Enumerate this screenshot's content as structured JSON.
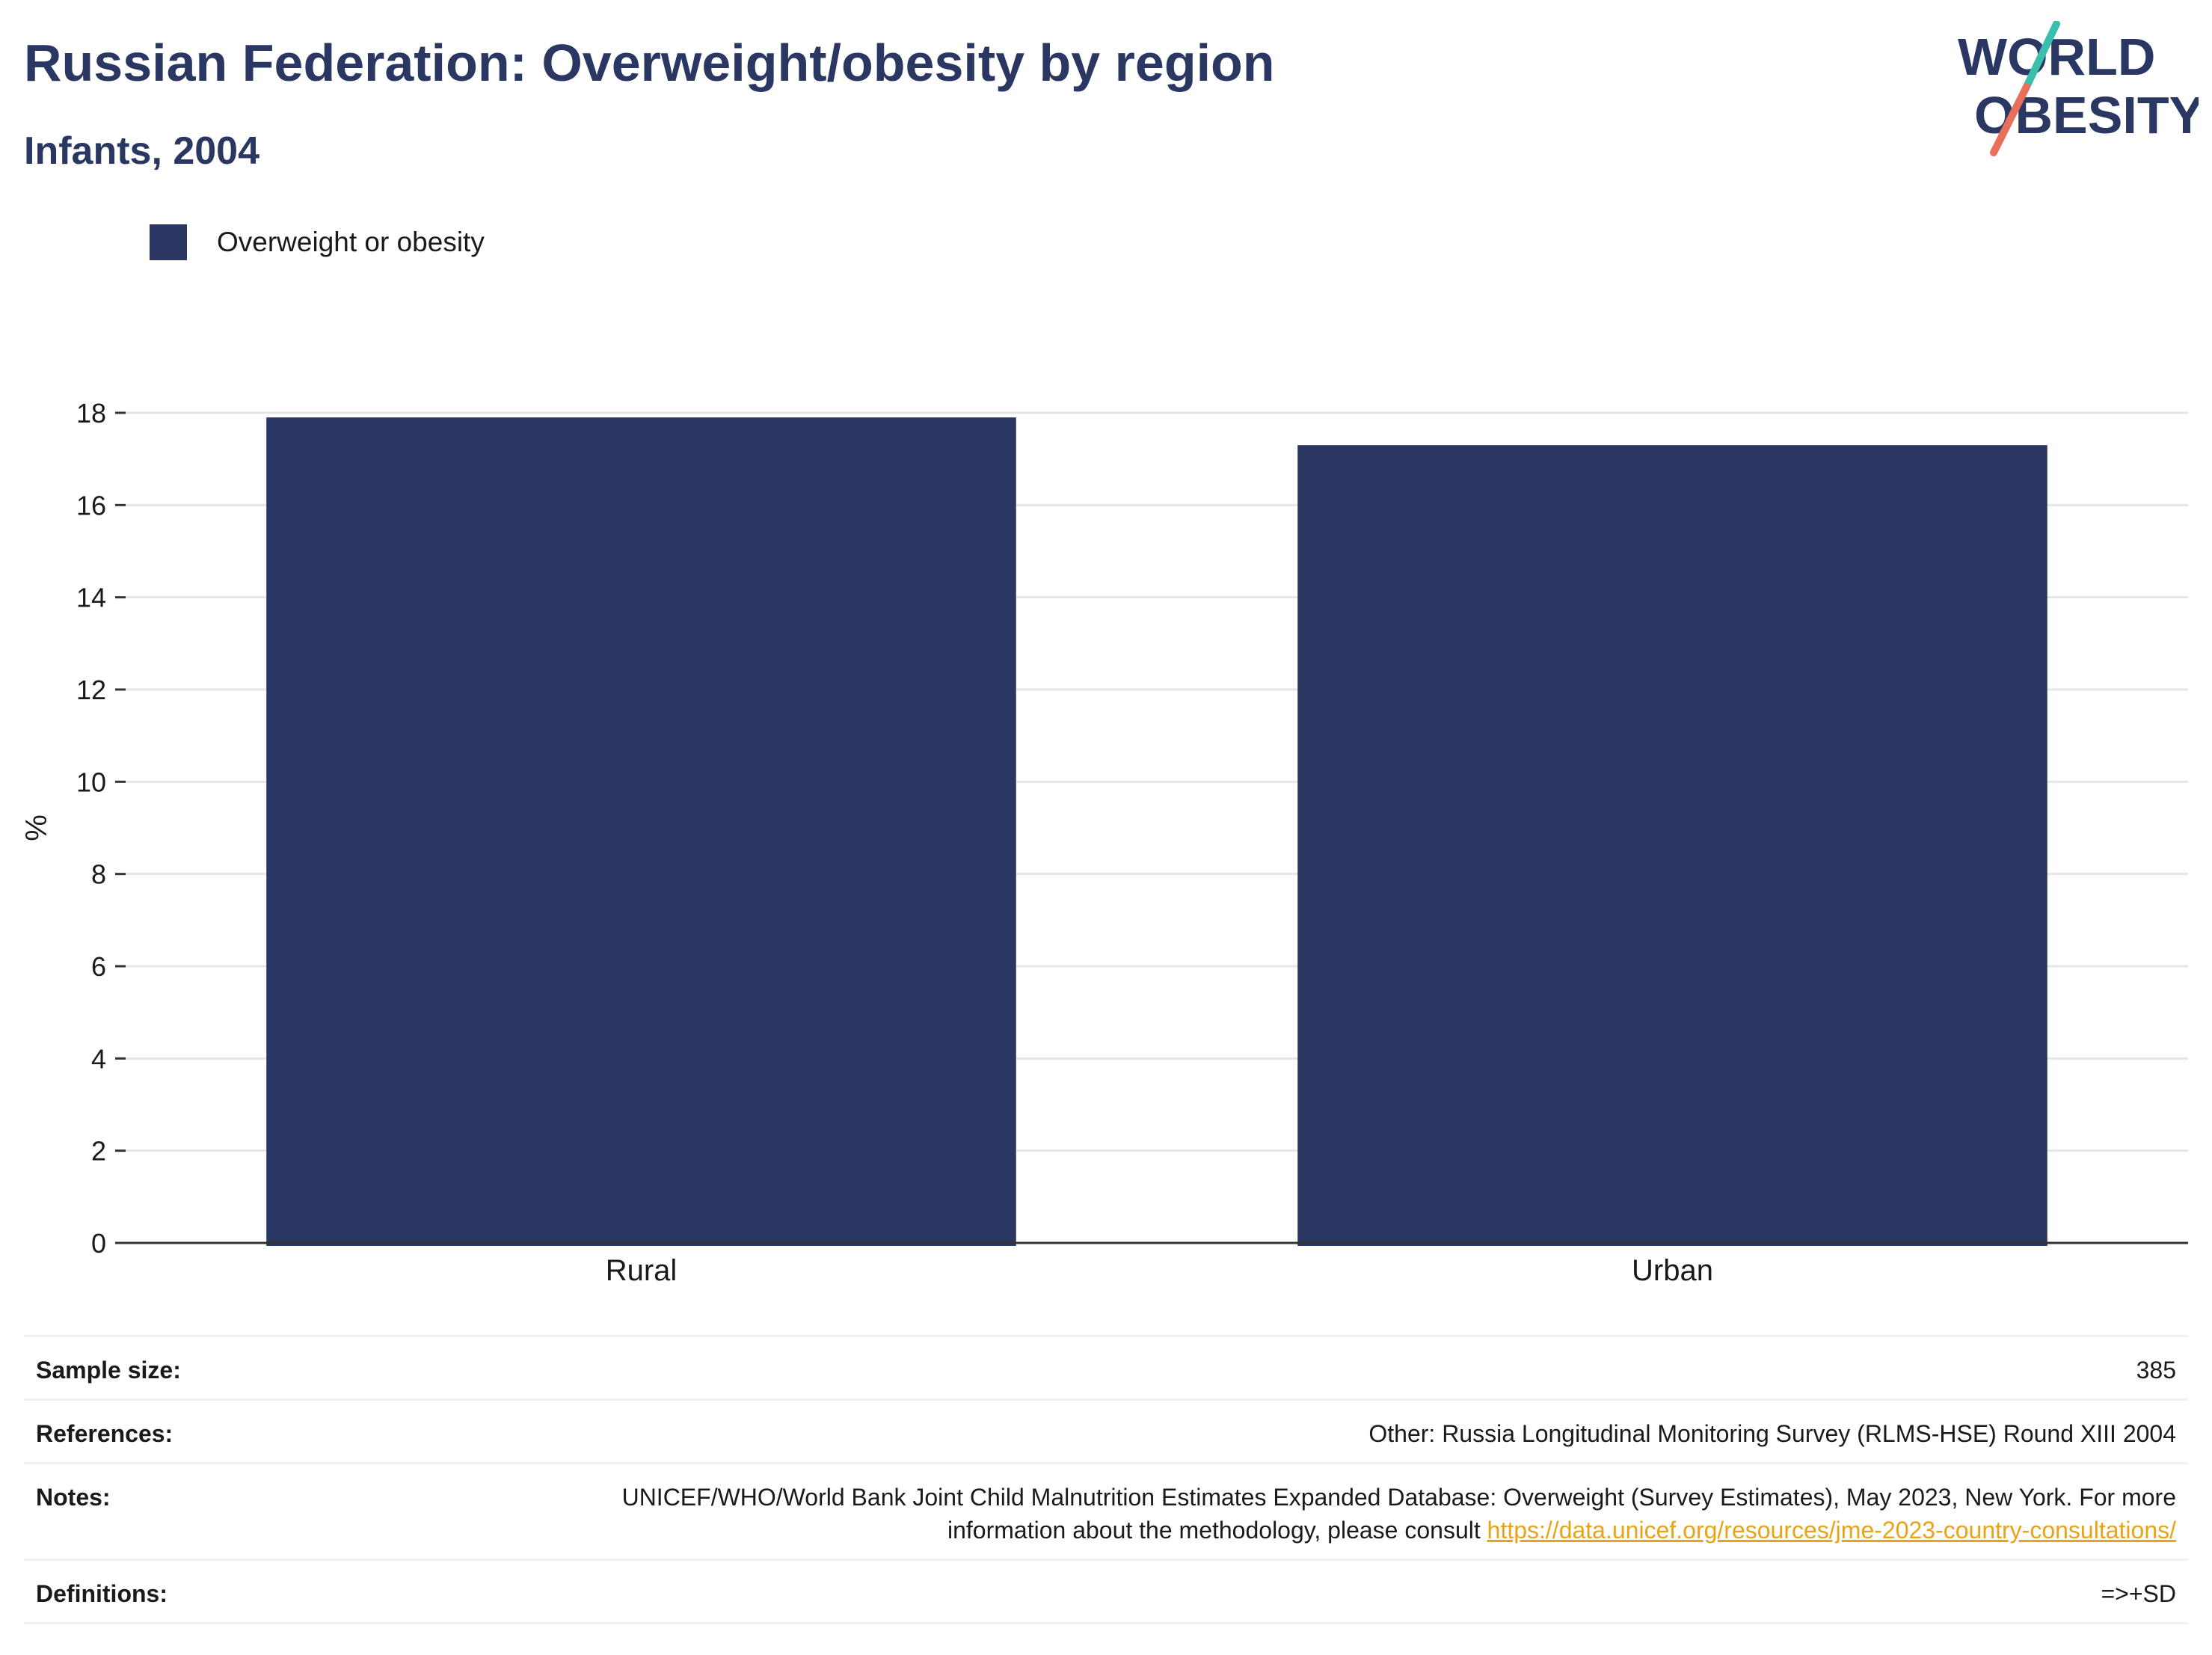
{
  "header": {
    "title": "Russian Federation: Overweight/obesity by region",
    "subtitle": "Infants, 2004"
  },
  "logo": {
    "line1": "WORLD",
    "line2": "OBESITY",
    "colors": {
      "text": "#2a3762",
      "slash_top": "#3bbfad",
      "slash_bottom": "#e8705b"
    }
  },
  "legend": {
    "items": [
      {
        "label": "Overweight or obesity",
        "color": "#2a3762"
      }
    ]
  },
  "chart_data": {
    "type": "bar",
    "categories": [
      "Rural",
      "Urban"
    ],
    "series": [
      {
        "name": "Overweight or obesity",
        "values": [
          17.9,
          17.3
        ],
        "color": "#2a3762"
      }
    ],
    "ylabel": "%",
    "xlabel": "",
    "ylim": [
      0,
      18
    ],
    "yticks": [
      0,
      2,
      4,
      6,
      8,
      10,
      12,
      14,
      16,
      18
    ],
    "grid": true,
    "legend_position": "top-left"
  },
  "footer": {
    "sample_size": {
      "label": "Sample size:",
      "value": "385"
    },
    "references": {
      "label": "References:",
      "value": "Other: Russia Longitudinal Monitoring Survey (RLMS-HSE) Round XIII 2004"
    },
    "notes": {
      "label": "Notes:",
      "text": "UNICEF/WHO/World Bank Joint Child Malnutrition Estimates Expanded Database: Overweight (Survey Estimates), May 2023, New York. For more information about the methodology, please consult ",
      "link": "https://data.unicef.org/resources/jme-2023-country-consultations/"
    },
    "definitions": {
      "label": "Definitions:",
      "value": "=>+SD"
    }
  }
}
